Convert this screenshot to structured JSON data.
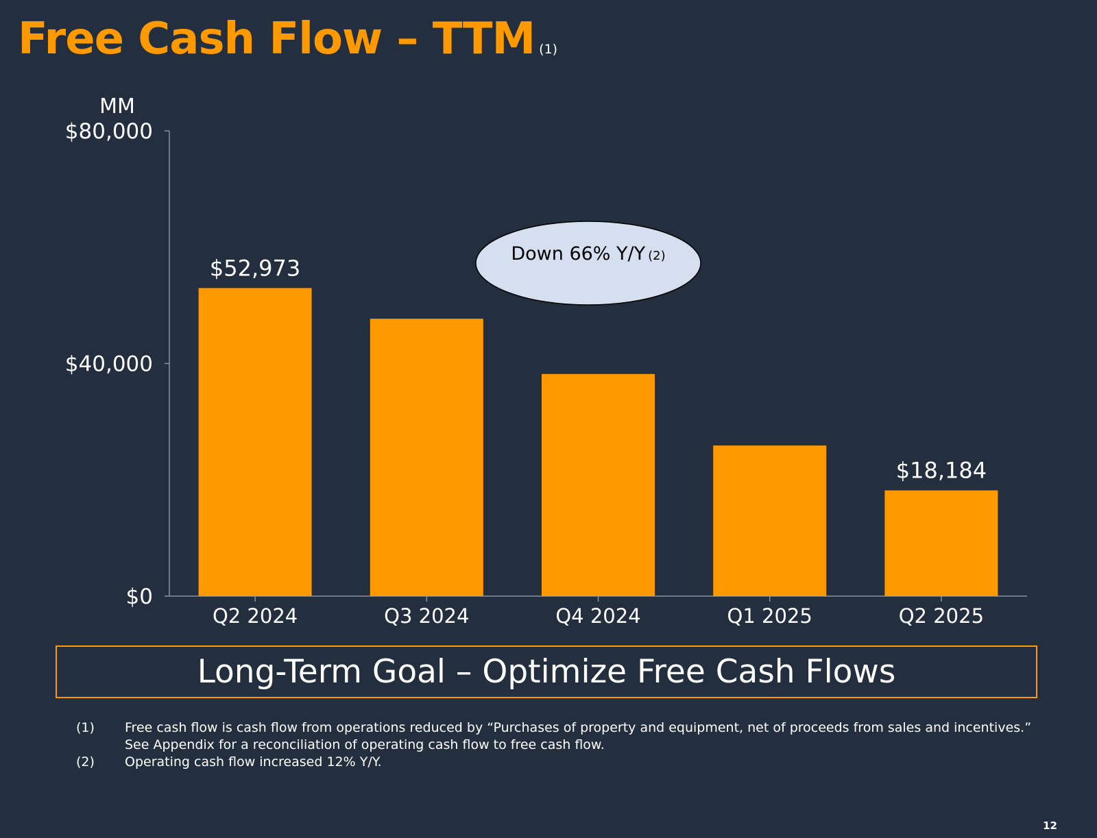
{
  "title": {
    "text": "Free Cash Flow – TTM",
    "footnote_ref": "(1)"
  },
  "chart_data": {
    "type": "bar",
    "title": "Free Cash Flow – TTM",
    "units_label": "MM",
    "categories": [
      "Q2 2024",
      "Q3 2024",
      "Q4 2024",
      "Q1 2025",
      "Q2 2025"
    ],
    "values": [
      52973,
      47700,
      38200,
      25900,
      18184
    ],
    "data_labels": [
      "$52,973",
      "",
      "",
      "",
      "$18,184"
    ],
    "ylim": [
      0,
      80000
    ],
    "yticks": [
      0,
      40000,
      80000
    ],
    "ytick_labels": [
      "$0",
      "$40,000",
      "$80,000"
    ],
    "xlabel": "",
    "ylabel": "",
    "grid": false,
    "legend": false,
    "bar_color": "#FF9900"
  },
  "callout": {
    "text": "Down 66% Y/Y",
    "footnote_ref": "(2)",
    "fill": "#D5DFEF"
  },
  "goal_banner": {
    "text": "Long-Term Goal – Optimize Free Cash Flows"
  },
  "footnotes": [
    {
      "num": "(1)",
      "lines": [
        "Free cash flow is cash flow from operations reduced by “Purchases of property and equipment, net of proceeds from sales and incentives.”",
        "See Appendix for a reconciliation of operating cash flow to free cash flow."
      ]
    },
    {
      "num": "(2)",
      "lines": [
        "Operating cash flow increased 12% Y/Y."
      ]
    }
  ],
  "page_number": "12",
  "colors": {
    "background": "#232F3E",
    "accent": "#FF9900",
    "text": "#FFFFFF",
    "axis": "#8A929C"
  }
}
